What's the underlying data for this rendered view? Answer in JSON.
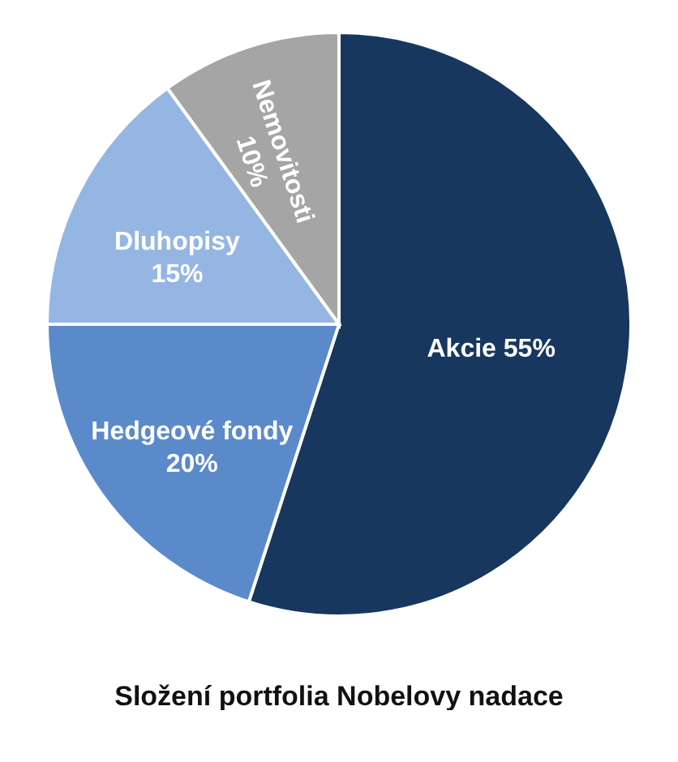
{
  "chart_data": {
    "type": "pie",
    "title": "Složení portfolia Nobelovy nadace",
    "categories": [
      "Akcie",
      "Hedgeové fondy",
      "Dluhopisy",
      "Nemovitosti"
    ],
    "values": [
      55,
      20,
      15,
      10
    ],
    "colors": [
      "#17375e",
      "#5b8acb",
      "#95b6e3",
      "#a5a5a5"
    ],
    "value_labels": [
      "55%",
      "20%",
      "15%",
      "10%"
    ]
  }
}
